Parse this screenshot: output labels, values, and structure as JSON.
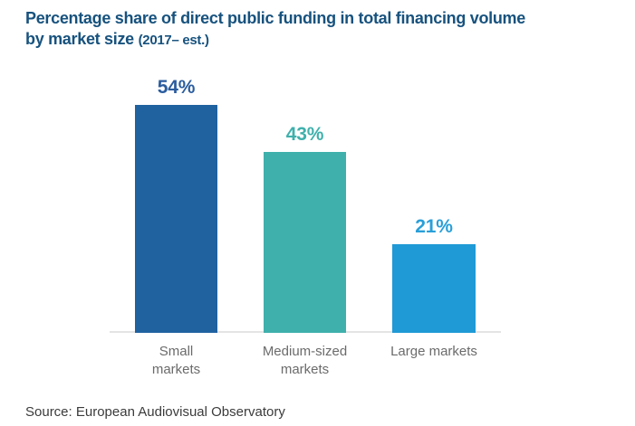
{
  "title": {
    "line1": "Percentage share of direct public funding in total financing volume",
    "line2_main": "by market size",
    "line2_suffix": "(2017– est.)",
    "color": "#17527e"
  },
  "chart_data": {
    "type": "bar",
    "title": "Percentage share of direct public funding in total financing volume by market size (2017– est.)",
    "categories": [
      "Small markets",
      "Medium-sized markets",
      "Large markets"
    ],
    "values": [
      54,
      43,
      21
    ],
    "value_labels": [
      "54%",
      "43%",
      "21%"
    ],
    "category_lines": [
      [
        "Small",
        "markets"
      ],
      [
        "Medium-sized",
        "markets"
      ],
      [
        "Large markets",
        ""
      ]
    ],
    "bar_colors": [
      "#2062a0",
      "#3fb0ac",
      "#1f9ad6"
    ],
    "label_colors": [
      "#2b5d9e",
      "#3fb0ac",
      "#299fd8"
    ],
    "xlabel": "",
    "ylabel": "",
    "ylim": [
      0,
      60
    ],
    "grid": false,
    "legend": false,
    "baseline_color": "#e4e4e4"
  },
  "source": {
    "text": "Source: European Audiovisual Observatory"
  }
}
